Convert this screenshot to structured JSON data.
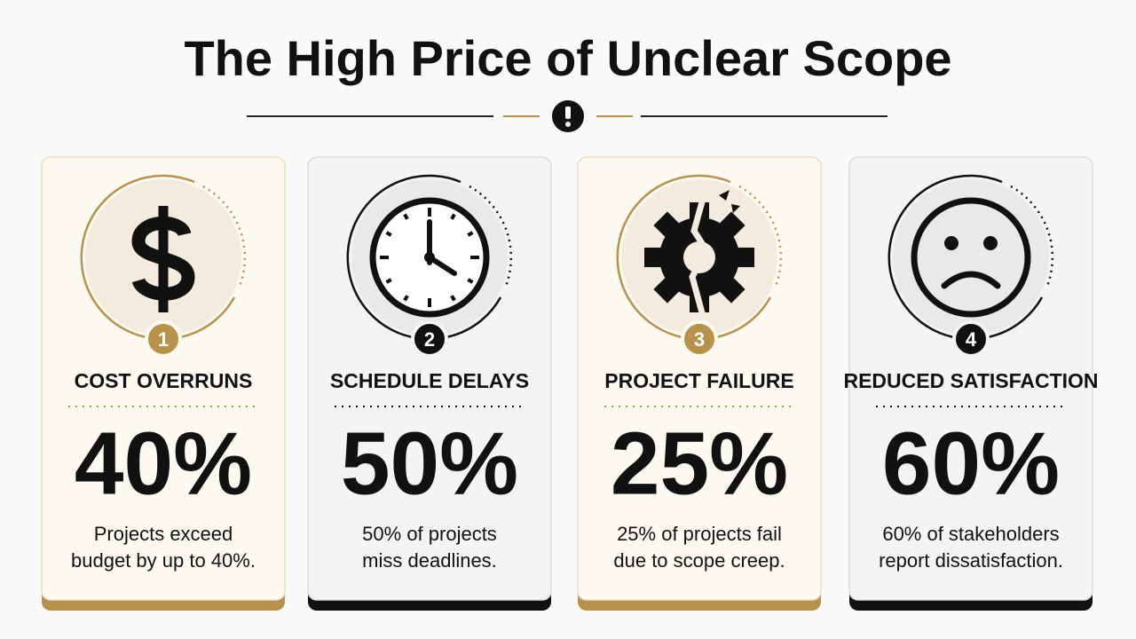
{
  "title": "The High Price of Unclear Scope",
  "cards": [
    {
      "number": "1",
      "heading": "COST OVERRUNS",
      "stat": "40%",
      "description": [
        "Projects exceed",
        "budget by up to 40%."
      ]
    },
    {
      "number": "2",
      "heading": "SCHEDULE DELAYS",
      "stat": "50%",
      "description": [
        "50% of projects",
        "miss deadlines."
      ]
    },
    {
      "number": "3",
      "heading": "PROJECT FAILURE",
      "stat": "25%",
      "description": [
        "25% of projects fail",
        "due to scope creep."
      ]
    },
    {
      "number": "4",
      "heading": "REDUCED SATISFACTION",
      "stat": "60%",
      "description": [
        "60% of stakeholders",
        "report dissatisfaction."
      ]
    }
  ]
}
